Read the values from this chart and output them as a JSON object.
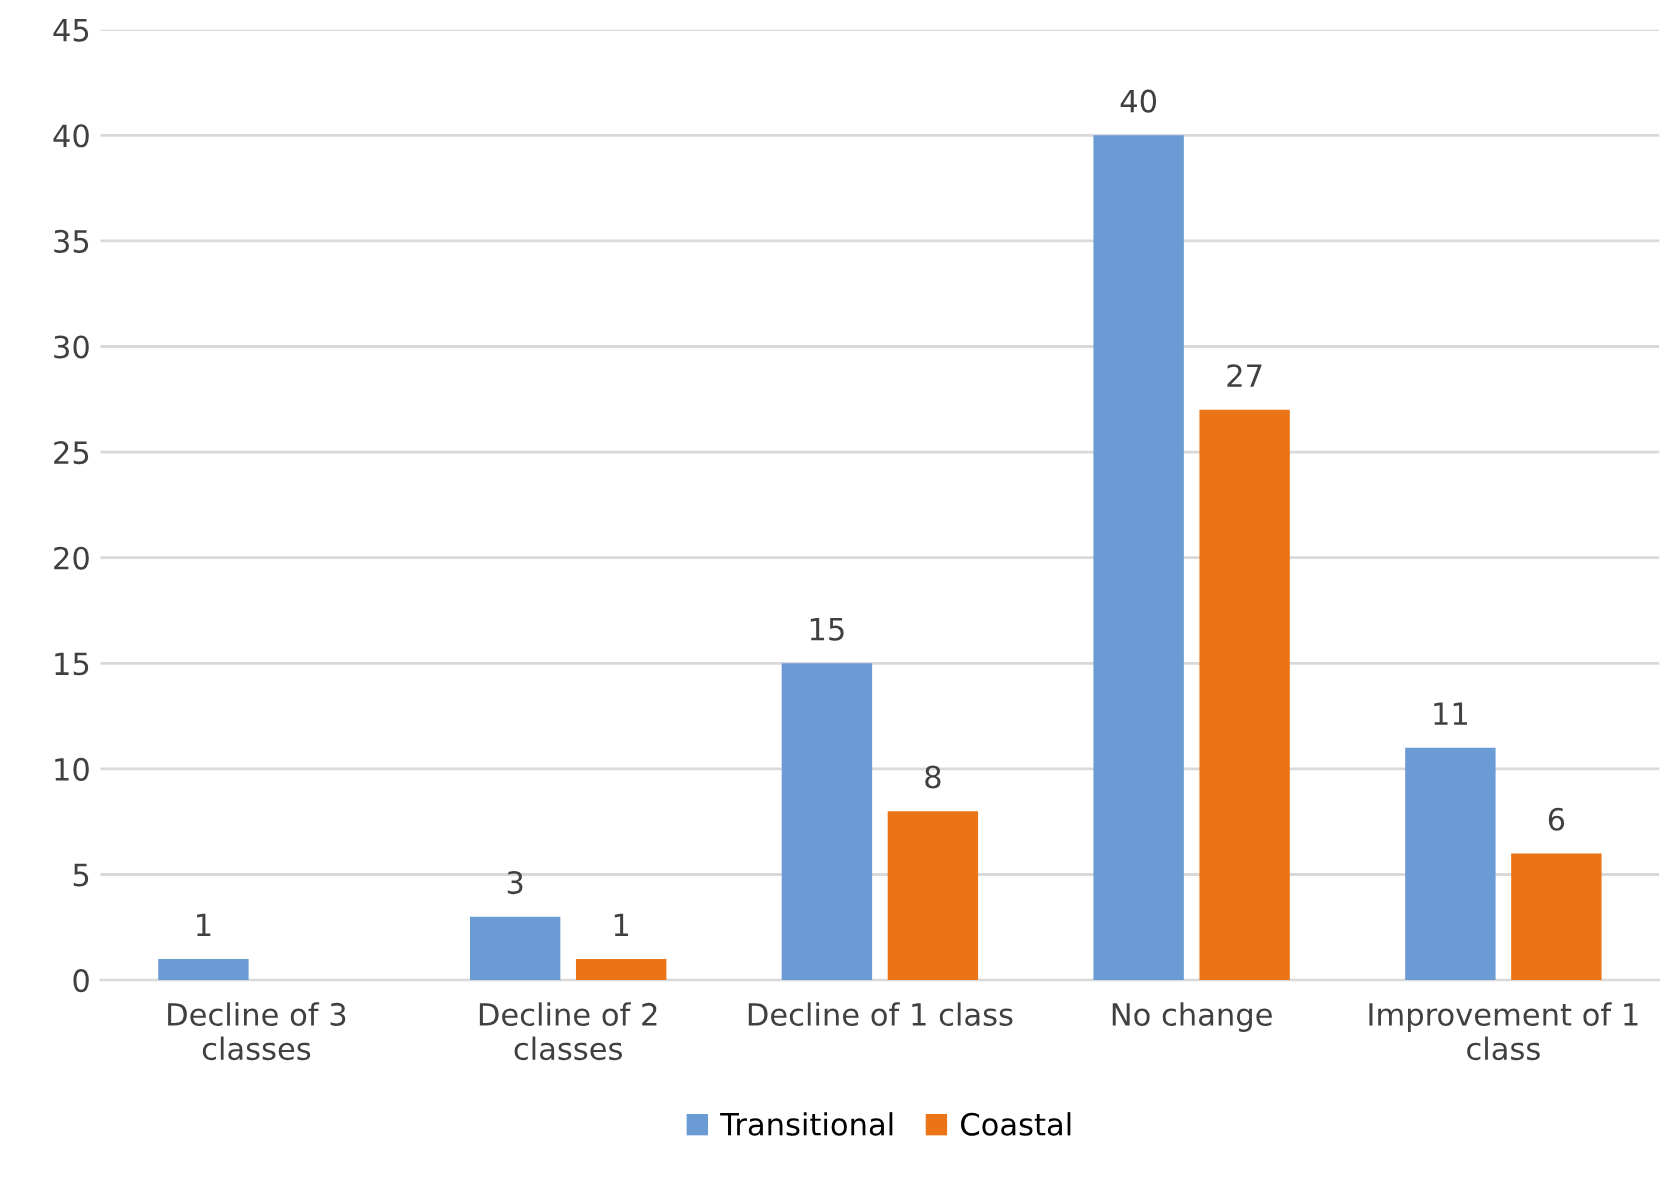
{
  "chart_data": {
    "type": "bar",
    "categories": [
      "Decline of 3 classes",
      "Decline of 2 classes",
      "Decline of 1 class",
      "No change",
      "Improvement of 1 class"
    ],
    "series": [
      {
        "name": "Transitional",
        "color": "#6a9bd4",
        "values": [
          1,
          3,
          15,
          40,
          11
        ]
      },
      {
        "name": "Coastal",
        "color": "#eb7516",
        "values": [
          null,
          1,
          8,
          27,
          6
        ]
      }
    ],
    "ylim": [
      0,
      45
    ],
    "yticks": [
      0,
      5,
      10,
      15,
      20,
      25,
      30,
      35,
      40,
      45
    ],
    "grid": "y",
    "legend": "bottom",
    "data_labels": true
  }
}
